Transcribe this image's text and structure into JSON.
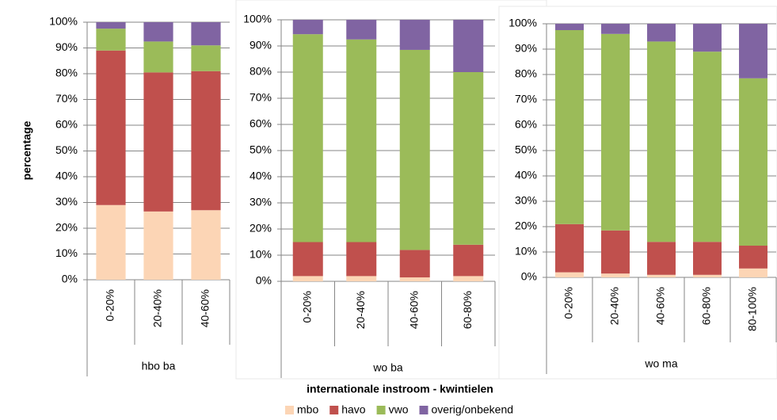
{
  "chart_data": {
    "type": "bar",
    "stacked": true,
    "ylabel": "percentage",
    "xlabel": "internationale instroom - kwintielen",
    "ylim": [
      0,
      100
    ],
    "yticks": [
      {
        "value": 0,
        "label": "0%"
      },
      {
        "value": 10,
        "label": "10%"
      },
      {
        "value": 20,
        "label": "20%"
      },
      {
        "value": 30,
        "label": "30%"
      },
      {
        "value": 40,
        "label": "40%"
      },
      {
        "value": 50,
        "label": "50%"
      },
      {
        "value": 60,
        "label": "60%"
      },
      {
        "value": 70,
        "label": "70%"
      },
      {
        "value": 80,
        "label": "80%"
      },
      {
        "value": 90,
        "label": "90%"
      },
      {
        "value": 100,
        "label": "100%"
      }
    ],
    "grid": true,
    "series": [
      {
        "name": "mbo",
        "color": "#fcd5b5"
      },
      {
        "name": "havo",
        "color": "#c0504d"
      },
      {
        "name": "vwo",
        "color": "#9bbb59"
      },
      {
        "name": "overig/onbekend",
        "color": "#8064a2"
      }
    ],
    "panels": [
      {
        "label": "hbo ba",
        "categories": [
          "0-20%",
          "20-40%",
          "40-60%"
        ],
        "values": [
          [
            29,
            26.5,
            27
          ],
          [
            60,
            54,
            54
          ],
          [
            8.5,
            12,
            10
          ],
          [
            2.5,
            7.5,
            9
          ]
        ]
      },
      {
        "label": "wo ba",
        "categories": [
          "0-20%",
          "20-40%",
          "40-60%",
          "60-80%"
        ],
        "values": [
          [
            2,
            2,
            1.5,
            2
          ],
          [
            13,
            13,
            10.5,
            12
          ],
          [
            79.5,
            77.5,
            76.5,
            66
          ],
          [
            5.5,
            7.5,
            11.5,
            20
          ]
        ]
      },
      {
        "label": "wo ma",
        "categories": [
          "0-20%",
          "20-40%",
          "40-60%",
          "60-80%",
          "80-100%"
        ],
        "values": [
          [
            2,
            1.5,
            1,
            1,
            3.5
          ],
          [
            19,
            17,
            13,
            13,
            9
          ],
          [
            76.5,
            77.5,
            79,
            75,
            66
          ],
          [
            2.5,
            4,
            7,
            11,
            21.5
          ]
        ]
      }
    ]
  }
}
